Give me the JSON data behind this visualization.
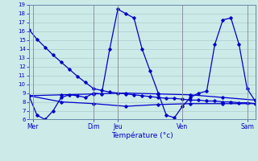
{
  "xlabel": "Température (°c)",
  "ylim": [
    6,
    19
  ],
  "xlim": [
    0,
    28
  ],
  "background_color": "#cceae8",
  "grid_color": "#aacccc",
  "line_color": "#0000cc",
  "day_labels": [
    "Mer",
    "Dim",
    "Jeu",
    "Ven",
    "Sam"
  ],
  "day_positions": [
    0.5,
    8,
    11,
    19,
    27
  ],
  "yticks": [
    6,
    7,
    8,
    9,
    10,
    11,
    12,
    13,
    14,
    15,
    16,
    17,
    18,
    19
  ],
  "series": [
    {
      "x": [
        0,
        1,
        2,
        3,
        4,
        5,
        6,
        7,
        8,
        9,
        10,
        11,
        12,
        13,
        14,
        15,
        16,
        17,
        18,
        19,
        20,
        21,
        22,
        23,
        24,
        25,
        26,
        27,
        28
      ],
      "y": [
        16.2,
        15.1,
        14.2,
        13.3,
        12.5,
        11.7,
        10.9,
        10.2,
        9.5,
        9.3,
        9.1,
        9.0,
        8.9,
        8.8,
        8.7,
        8.6,
        8.5,
        8.4,
        8.4,
        8.3,
        8.2,
        8.2,
        8.1,
        8.1,
        8.0,
        8.0,
        7.9,
        7.9,
        7.8
      ]
    },
    {
      "x": [
        0,
        1,
        2,
        3,
        4,
        5,
        6,
        7,
        8,
        9,
        10,
        11,
        12,
        13,
        14,
        15,
        16,
        17,
        18,
        19,
        20,
        21,
        22,
        23,
        24,
        25,
        26,
        27,
        28
      ],
      "y": [
        8.7,
        6.5,
        6.0,
        7.0,
        8.5,
        8.8,
        8.7,
        8.5,
        9.0,
        8.9,
        14.0,
        18.5,
        18.0,
        17.5,
        14.0,
        11.5,
        9.0,
        6.5,
        6.2,
        7.5,
        8.5,
        9.0,
        9.2,
        14.5,
        17.3,
        17.5,
        14.5,
        9.5,
        8.1
      ]
    },
    {
      "x": [
        0,
        4,
        8,
        12,
        16,
        20,
        24,
        28
      ],
      "y": [
        8.7,
        8.8,
        8.9,
        9.0,
        8.9,
        8.8,
        8.5,
        8.2
      ]
    },
    {
      "x": [
        0,
        4,
        8,
        12,
        16,
        20,
        24,
        28
      ],
      "y": [
        8.7,
        8.0,
        7.8,
        7.5,
        7.7,
        7.8,
        7.8,
        7.8
      ]
    }
  ]
}
